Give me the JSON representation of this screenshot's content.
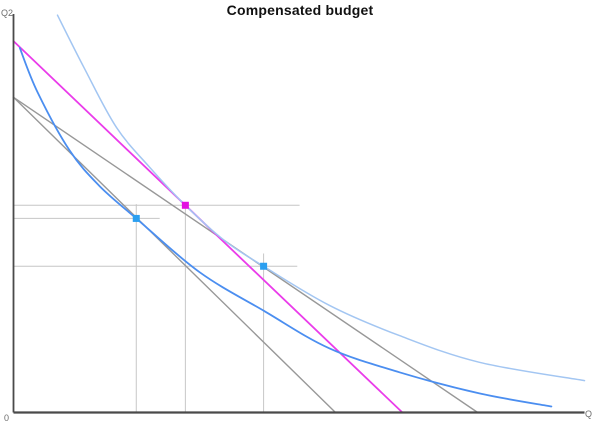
{
  "title": "Compensated budget",
  "axes": {
    "y_label": "Q2",
    "x_label": "Q",
    "origin_label": "0",
    "axis_color": "#4a4a4a",
    "label_color": "#6e6e6e"
  },
  "colors": {
    "budget_gray": "#989898",
    "compensated_magenta": "#ea3cea",
    "indifference_light_blue": "#a3c6f2",
    "indifference_blue": "#4b8ef0",
    "helper_gray": "#c6c6c6",
    "marker_blue": "#2b9ff0",
    "marker_magenta": "#e211e2"
  },
  "chart_data": {
    "type": "line",
    "title": "Compensated budget",
    "xlabel": "Q",
    "ylabel": "Q2",
    "x_range": [
      0,
      100
    ],
    "y_range": [
      0,
      100
    ],
    "grid": false,
    "legend_position": "none",
    "series": [
      {
        "key": "budget-line-original",
        "name": "original budget line",
        "shape": "straight",
        "color": "#989898",
        "width": 1.4,
        "points": [
          [
            0,
            79.1
          ],
          [
            81.3,
            0
          ]
        ]
      },
      {
        "key": "budget-line-new",
        "name": "new budget line (pivoted at same intercept)",
        "shape": "straight",
        "color": "#989898",
        "width": 1.4,
        "points": [
          [
            0,
            79.1
          ],
          [
            56.4,
            0
          ]
        ]
      },
      {
        "key": "budget-line-compensated",
        "name": "compensated budget line",
        "shape": "straight",
        "color": "#ea3cea",
        "width": 1.8,
        "points": [
          [
            0,
            93.2
          ],
          [
            68.1,
            0
          ]
        ]
      },
      {
        "key": "indifference-curve-u1",
        "name": "original indifference curve U1",
        "shape": "curve",
        "color": "#a3c6f2",
        "width": 1.5,
        "points": [
          [
            7.7,
            99.7
          ],
          [
            12.4,
            86.4
          ],
          [
            18.0,
            71.6
          ],
          [
            23.8,
            61.6
          ],
          [
            30.1,
            52.0
          ],
          [
            36.9,
            43.2
          ],
          [
            43.8,
            36.7
          ],
          [
            55.3,
            26.9
          ],
          [
            67.6,
            19.3
          ],
          [
            81.6,
            12.6
          ],
          [
            100.0,
            8.0
          ]
        ]
      },
      {
        "key": "indifference-curve-u2",
        "name": "lower indifference curve U2",
        "shape": "curve",
        "color": "#4b8ef0",
        "width": 1.8,
        "points": [
          [
            1.1,
            91.5
          ],
          [
            4.2,
            80.4
          ],
          [
            9.8,
            65.8
          ],
          [
            15.1,
            56.8
          ],
          [
            21.5,
            48.7
          ],
          [
            32.6,
            35.2
          ],
          [
            44.0,
            25.4
          ],
          [
            55.3,
            16.1
          ],
          [
            67.6,
            10.1
          ],
          [
            81.6,
            4.8
          ],
          [
            94.2,
            1.5
          ]
        ]
      }
    ],
    "markers": [
      {
        "key": "bundle-new",
        "name": "new bundle (on new budget line, tangent U2)",
        "x": 21.5,
        "y": 48.7,
        "color": "#2b9ff0",
        "shape": "square",
        "size": 7
      },
      {
        "key": "bundle-compensated",
        "name": "compensated bundle (on compensated budget, tangent U1)",
        "x": 30.1,
        "y": 52.0,
        "color": "#e211e2",
        "shape": "square",
        "size": 7
      },
      {
        "key": "bundle-original",
        "name": "original bundle (on original budget line, tangent U1)",
        "x": 43.8,
        "y": 36.7,
        "color": "#2b9ff0",
        "shape": "square",
        "size": 7
      }
    ],
    "helper_lines": [
      {
        "key": "hline-compensated-bundle",
        "type": "h",
        "y": 52.0,
        "x_from": 0,
        "x_to": 50.1
      },
      {
        "key": "hline-new-bundle",
        "type": "h",
        "y": 48.7,
        "x_from": 0,
        "x_to": 25.6
      },
      {
        "key": "hline-original-bundle",
        "type": "h",
        "y": 36.7,
        "x_from": 0,
        "x_to": 49.7
      },
      {
        "key": "vline-new-bundle",
        "type": "v",
        "x": 21.5,
        "y_from": 0,
        "y_to": 52.3
      },
      {
        "key": "vline-compensated-bundle",
        "type": "v",
        "x": 30.1,
        "y_from": 0,
        "y_to": 52.0
      },
      {
        "key": "vline-original-bundle",
        "type": "v",
        "x": 43.8,
        "y_from": 0,
        "y_to": 39.9
      }
    ]
  }
}
